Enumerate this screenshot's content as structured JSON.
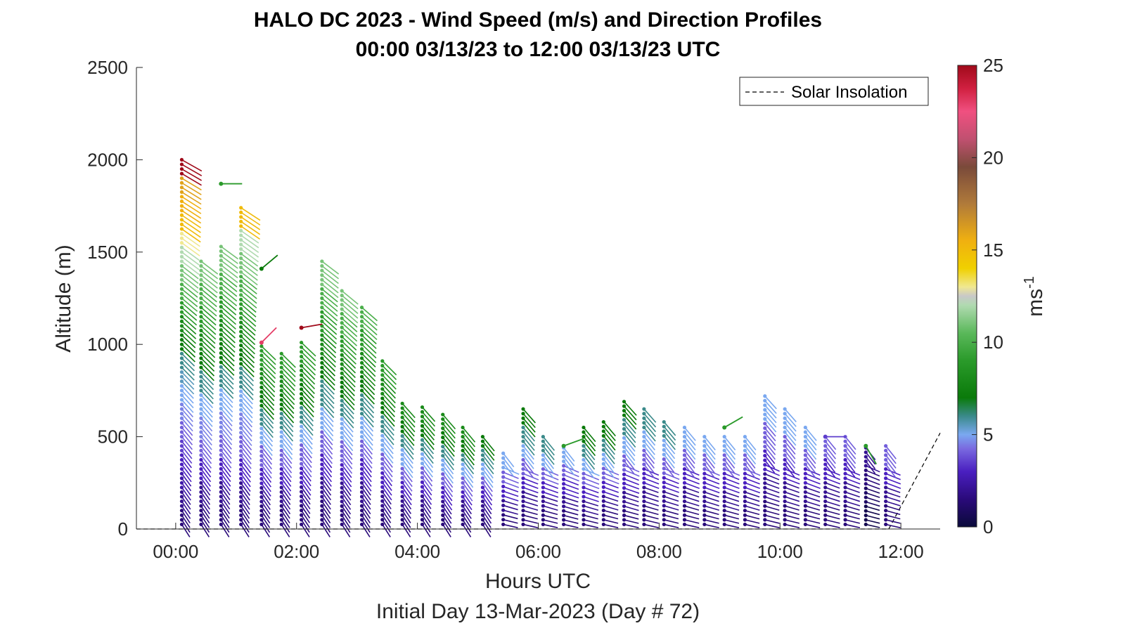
{
  "chart_data": {
    "type": "scatter",
    "title_lines": [
      "HALO DC 2023 - Wind Speed (m/s) and Direction Profiles",
      "00:00 03/13/23 to 12:00 03/13/23  UTC"
    ],
    "xlabel": "Hours UTC",
    "xlabel2": "Initial Day 13-Mar-2023 (Day # 72)",
    "ylabel": "Altitude (m)",
    "colorbar_label": "ms",
    "colorbar_label_exp": "-1",
    "x_ticks": [
      "00:00",
      "02:00",
      "04:00",
      "06:00",
      "08:00",
      "10:00",
      "12:00"
    ],
    "x_tick_hours": [
      0,
      2,
      4,
      6,
      8,
      10,
      12
    ],
    "xlim_hours": [
      -0.65,
      12.65
    ],
    "y_ticks": [
      "0",
      "500",
      "1000",
      "1500",
      "2000",
      "2500"
    ],
    "y_tick_values": [
      0,
      500,
      1000,
      1500,
      2000,
      2500
    ],
    "ylim": [
      0,
      2500
    ],
    "colorbar_ticks": [
      "0",
      "5",
      "10",
      "15",
      "20",
      "25"
    ],
    "colorbar_tick_values": [
      0,
      5,
      10,
      15,
      20,
      25
    ],
    "clim": [
      0,
      25
    ],
    "legend": {
      "label": "Solar Insolation",
      "position": "top-right"
    },
    "solar_insolation": {
      "x_hours": [
        -0.65,
        11.8,
        12.65
      ],
      "y_m": [
        0,
        0,
        520
      ]
    },
    "profiles": [
      {
        "t": 0.1,
        "top": 2000,
        "speeds": [
          1.5,
          2,
          2.5,
          3,
          3.5,
          4,
          4.5,
          5,
          5.5,
          6,
          7,
          8,
          9,
          10,
          11,
          12,
          13,
          15,
          15.5,
          16,
          25
        ]
      },
      {
        "t": 0.42,
        "top": 1450,
        "speeds": [
          1.5,
          2,
          3,
          4,
          4.5,
          5,
          6,
          7,
          8,
          9,
          10,
          11
        ]
      },
      {
        "t": 0.75,
        "top": 1530,
        "speeds": [
          1.5,
          2,
          3,
          4,
          4.5,
          5,
          6,
          7,
          8,
          9,
          10,
          11
        ]
      },
      {
        "t": 1.08,
        "top": 1740,
        "speeds": [
          1.5,
          2,
          3,
          4,
          4.5,
          5,
          6,
          7,
          8,
          9,
          10,
          11,
          12,
          15
        ]
      },
      {
        "t": 1.42,
        "top": 990,
        "speeds": [
          1.5,
          2,
          3,
          4,
          5,
          6,
          7,
          8,
          9
        ]
      },
      {
        "t": 1.75,
        "top": 950,
        "speeds": [
          1.5,
          2,
          3,
          4,
          5,
          6,
          7,
          8,
          9
        ]
      },
      {
        "t": 2.08,
        "top": 1010,
        "speeds": [
          1.5,
          2,
          3,
          4,
          5,
          6,
          7,
          8,
          9
        ]
      },
      {
        "t": 2.42,
        "top": 1450,
        "speeds": [
          1.5,
          2,
          3,
          4,
          5,
          6,
          7,
          8,
          9,
          10,
          11
        ]
      },
      {
        "t": 2.75,
        "top": 1290,
        "speeds": [
          1.5,
          2,
          3,
          4,
          5,
          6,
          7,
          8,
          9,
          10,
          11
        ]
      },
      {
        "t": 3.08,
        "top": 1200,
        "speeds": [
          1.5,
          2,
          3,
          4,
          5,
          6,
          7,
          8,
          9,
          10
        ]
      },
      {
        "t": 3.42,
        "top": 910,
        "speeds": [
          1.5,
          2,
          3,
          4,
          5,
          6,
          7,
          8,
          9
        ]
      },
      {
        "t": 3.75,
        "top": 680,
        "speeds": [
          1.5,
          2,
          3,
          4,
          5,
          6,
          7,
          8
        ]
      },
      {
        "t": 4.08,
        "top": 660,
        "speeds": [
          1.5,
          2,
          3,
          4,
          5,
          6,
          7,
          8
        ]
      },
      {
        "t": 4.42,
        "top": 620,
        "speeds": [
          1.5,
          2,
          3,
          4,
          5,
          6,
          7,
          8
        ]
      },
      {
        "t": 4.75,
        "top": 550,
        "speeds": [
          1.5,
          2,
          3,
          4,
          5,
          6,
          7,
          8
        ]
      },
      {
        "t": 5.08,
        "top": 500,
        "speeds": [
          1.5,
          2,
          3,
          4,
          5,
          6,
          7
        ]
      },
      {
        "t": 5.42,
        "top": 410,
        "speeds": [
          1.5,
          2,
          3,
          4,
          5
        ]
      },
      {
        "t": 5.75,
        "top": 650,
        "speeds": [
          1.5,
          2,
          3,
          4,
          5,
          6,
          7
        ]
      },
      {
        "t": 6.08,
        "top": 500,
        "speeds": [
          1.5,
          2,
          3,
          4,
          5,
          6
        ]
      },
      {
        "t": 6.42,
        "top": 440,
        "speeds": [
          1.5,
          2,
          3,
          4,
          5
        ]
      },
      {
        "t": 6.75,
        "top": 550,
        "speeds": [
          1.5,
          2,
          3,
          4,
          5,
          6,
          7
        ]
      },
      {
        "t": 7.08,
        "top": 580,
        "speeds": [
          1.5,
          2,
          3,
          4,
          5,
          6,
          7
        ]
      },
      {
        "t": 7.42,
        "top": 690,
        "speeds": [
          1.5,
          2,
          3,
          4,
          5,
          6,
          7
        ]
      },
      {
        "t": 7.75,
        "top": 650,
        "speeds": [
          1.5,
          2,
          3,
          4,
          5,
          6
        ]
      },
      {
        "t": 8.08,
        "top": 580,
        "speeds": [
          1.5,
          2,
          3,
          4,
          5,
          6
        ]
      },
      {
        "t": 8.42,
        "top": 550,
        "speeds": [
          1.5,
          2,
          3,
          4,
          5
        ]
      },
      {
        "t": 8.75,
        "top": 500,
        "speeds": [
          1.5,
          2,
          3,
          4,
          5
        ]
      },
      {
        "t": 9.08,
        "top": 500,
        "speeds": [
          1.5,
          2,
          3,
          4,
          5
        ]
      },
      {
        "t": 9.42,
        "top": 500,
        "speeds": [
          1.5,
          2,
          3,
          4,
          5
        ]
      },
      {
        "t": 9.75,
        "top": 720,
        "speeds": [
          1.5,
          2,
          3,
          4,
          5
        ]
      },
      {
        "t": 10.08,
        "top": 650,
        "speeds": [
          1.5,
          2,
          3,
          4,
          5
        ]
      },
      {
        "t": 10.42,
        "top": 550,
        "speeds": [
          1.5,
          2,
          3,
          4,
          5
        ]
      },
      {
        "t": 10.75,
        "top": 500,
        "speeds": [
          1.5,
          2,
          3,
          4
        ]
      },
      {
        "t": 11.08,
        "top": 500,
        "speeds": [
          1.5,
          2,
          3,
          4
        ]
      },
      {
        "t": 11.42,
        "top": 440,
        "speeds": [
          0.5,
          1,
          1.5,
          2
        ]
      },
      {
        "t": 11.75,
        "top": 450,
        "speeds": [
          1.5,
          2,
          3,
          4
        ]
      }
    ],
    "outliers": [
      {
        "t": 0.75,
        "alt": 1870,
        "speed": 9,
        "dir": 0
      },
      {
        "t": 1.42,
        "alt": 1410,
        "speed": 7,
        "dir": -40
      },
      {
        "t": 1.42,
        "alt": 1010,
        "speed": 23,
        "dir": -45
      },
      {
        "t": 2.08,
        "alt": 1090,
        "speed": 25,
        "dir": -10
      },
      {
        "t": 6.42,
        "alt": 450,
        "speed": 9,
        "dir": -20
      },
      {
        "t": 9.08,
        "alt": 550,
        "speed": 9,
        "dir": -30
      },
      {
        "t": 10.75,
        "alt": 500,
        "speed": 3.5,
        "dir": 0
      },
      {
        "t": 11.42,
        "alt": 450,
        "speed": 9,
        "dir": 60
      }
    ]
  }
}
